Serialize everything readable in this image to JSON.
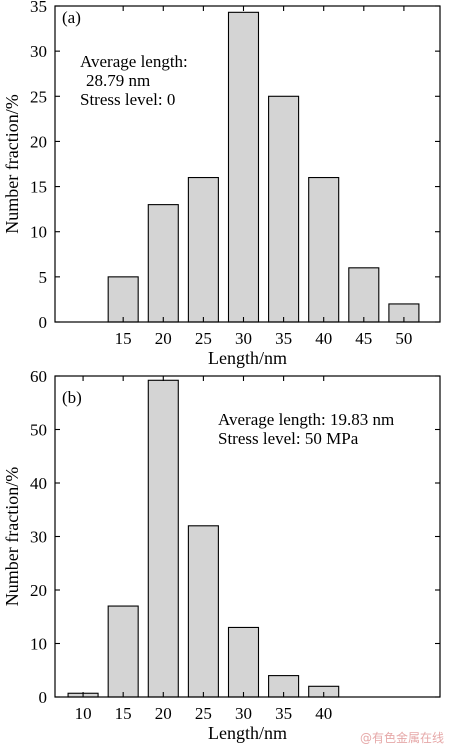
{
  "chart_data": [
    {
      "type": "bar",
      "panel_label": "(a)",
      "categories": [
        15,
        20,
        25,
        30,
        35,
        40,
        45,
        50
      ],
      "values": [
        5,
        13,
        16,
        34.3,
        25,
        16,
        6,
        2
      ],
      "xlabel": "Length/nm",
      "ylabel": "Number fraction/%",
      "ylim": [
        0,
        35
      ],
      "yticks": [
        0,
        5,
        10,
        15,
        20,
        25,
        30,
        35
      ],
      "xlim": [
        6.5,
        54.5
      ],
      "grid": false,
      "annotation_lines": [
        "Average length:",
        "28.79 nm",
        "Stress level: 0"
      ]
    },
    {
      "type": "bar",
      "panel_label": "(b)",
      "categories": [
        10,
        15,
        20,
        25,
        30,
        35,
        40
      ],
      "values": [
        0.7,
        17,
        59.2,
        32,
        13,
        4,
        2
      ],
      "xlabel": "Length/nm",
      "ylabel": "Number fraction/%",
      "ylim": [
        0,
        60
      ],
      "yticks": [
        0,
        10,
        20,
        30,
        40,
        50,
        60
      ],
      "xlim": [
        6.5,
        54.5
      ],
      "grid": false,
      "annotation_lines": [
        "Average length: 19.83 nm",
        "Stress level: 50 MPa"
      ]
    }
  ],
  "watermark": "@有色金属在线"
}
